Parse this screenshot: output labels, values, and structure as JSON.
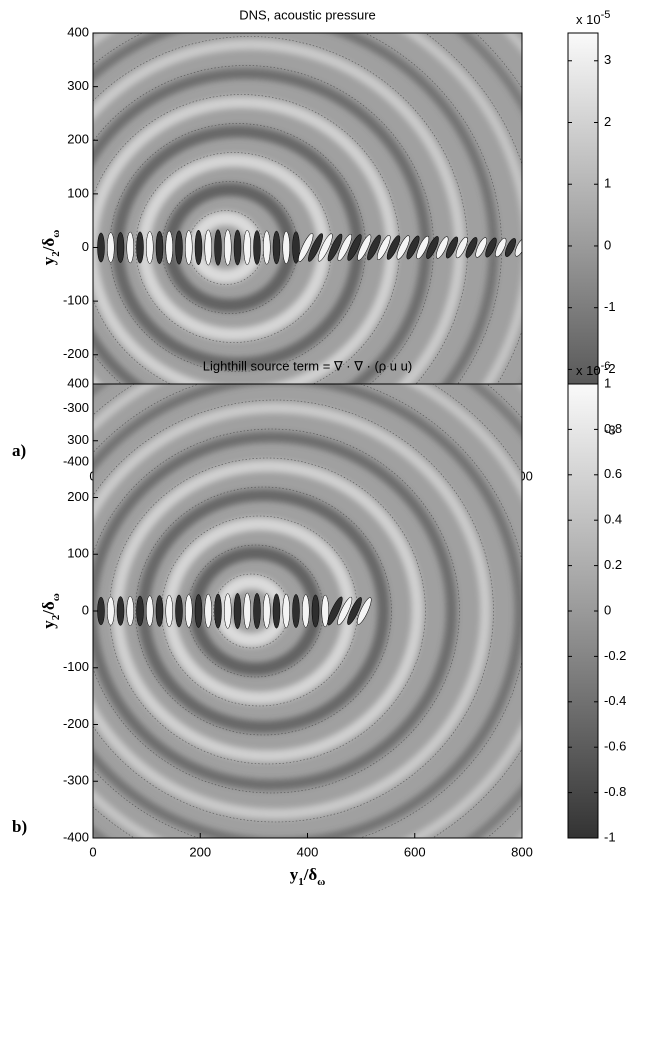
{
  "chart_data": [
    {
      "type": "contour",
      "panel_label": "a)",
      "title": "DNS, acoustic pressure",
      "xlabel": [
        "y",
        "1",
        "/δ",
        "ω"
      ],
      "ylabel": [
        "y",
        "2",
        "/δ",
        "ω"
      ],
      "xlim": [
        0,
        800
      ],
      "xticks": [
        0,
        200,
        400,
        600,
        800
      ],
      "ylim": [
        -400,
        400
      ],
      "yticks": [
        -400,
        -300,
        -200,
        -100,
        0,
        100,
        200,
        300,
        400
      ],
      "colorbar_lim": [
        -3.5,
        3.45
      ],
      "colorbar_ticks": [
        -3,
        -2,
        -1,
        0,
        1,
        2,
        3
      ],
      "colorbar_scale": [
        "x 10",
        "-5"
      ]
    },
    {
      "type": "contour",
      "panel_label": "b)",
      "title": "Lighthill source term = ∇ · ∇ · (ρ u u)",
      "xlabel": [
        "y",
        "1",
        "/δ",
        "ω"
      ],
      "ylabel": [
        "y",
        "2",
        "/δ",
        "ω"
      ],
      "xlim": [
        0,
        800
      ],
      "xticks": [
        0,
        200,
        400,
        600,
        800
      ],
      "ylim": [
        -400,
        400
      ],
      "yticks": [
        -400,
        -300,
        -200,
        -100,
        0,
        100,
        200,
        300,
        400
      ],
      "colorbar_lim": [
        -1,
        1
      ],
      "colorbar_ticks": [
        -1,
        -0.8,
        -0.6,
        -0.4,
        -0.2,
        0,
        0.2,
        0.4,
        0.6,
        0.8,
        1
      ],
      "colorbar_scale": [
        "x 10",
        "-6"
      ]
    }
  ]
}
